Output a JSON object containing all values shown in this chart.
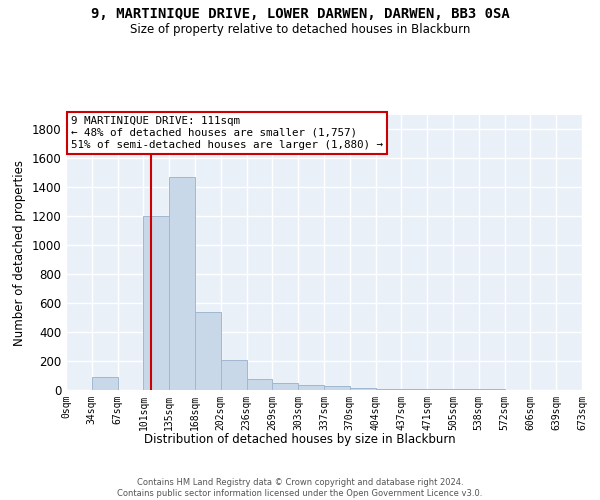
{
  "title": "9, MARTINIQUE DRIVE, LOWER DARWEN, DARWEN, BB3 0SA",
  "subtitle": "Size of property relative to detached houses in Blackburn",
  "xlabel_bottom": "Distribution of detached houses by size in Blackburn",
  "ylabel": "Number of detached properties",
  "footnote": "Contains HM Land Registry data © Crown copyright and database right 2024.\nContains public sector information licensed under the Open Government Licence v3.0.",
  "bin_edges": [
    0,
    33.65,
    67.3,
    100.95,
    134.6,
    168.25,
    201.9,
    235.55,
    269.2,
    302.85,
    336.5,
    370.15,
    403.8,
    437.45,
    471.1,
    504.75,
    538.4,
    572.05,
    605.7,
    639.35,
    673.0
  ],
  "bar_heights": [
    0,
    90,
    0,
    1200,
    1470,
    540,
    210,
    75,
    50,
    35,
    25,
    15,
    10,
    8,
    5,
    5,
    5,
    3,
    3,
    2
  ],
  "bar_color": "#c8d8e8",
  "bar_edgecolor": "#a0b8d0",
  "property_size": 111,
  "red_line_color": "#cc0000",
  "annotation_text": "9 MARTINIQUE DRIVE: 111sqm\n← 48% of detached houses are smaller (1,757)\n51% of semi-detached houses are larger (1,880) →",
  "annotation_box_edgecolor": "#cc0000",
  "annotation_box_facecolor": "#ffffff",
  "ylim": [
    0,
    1900
  ],
  "yticks": [
    0,
    200,
    400,
    600,
    800,
    1000,
    1200,
    1400,
    1600,
    1800
  ],
  "background_color": "#eaf0f8",
  "grid_color": "#ffffff",
  "tick_labels": [
    "0sqm",
    "34sqm",
    "67sqm",
    "101sqm",
    "135sqm",
    "168sqm",
    "202sqm",
    "236sqm",
    "269sqm",
    "303sqm",
    "337sqm",
    "370sqm",
    "404sqm",
    "437sqm",
    "471sqm",
    "505sqm",
    "538sqm",
    "572sqm",
    "606sqm",
    "639sqm",
    "673sqm"
  ]
}
